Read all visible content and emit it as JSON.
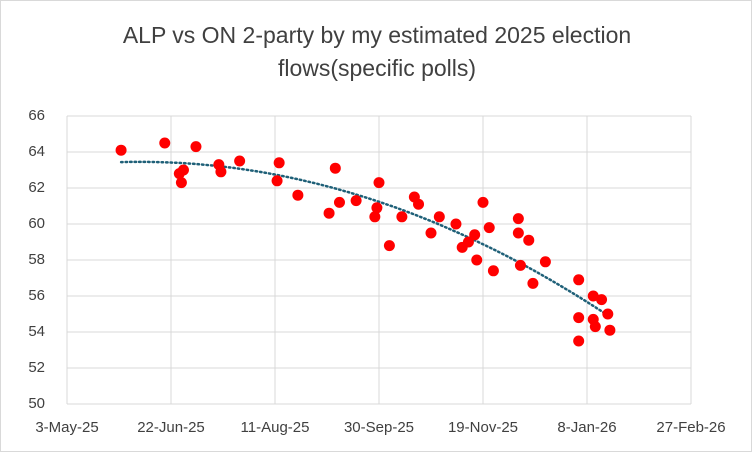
{
  "chart_data": {
    "type": "scatter",
    "title": "ALP vs ON 2-party by my estimated 2025 election flows(specific polls)",
    "color": "#ff0000",
    "grid": true,
    "trendline": "polynomial",
    "trendline_color": "#1f6078",
    "xlim": [
      45780,
      46080
    ],
    "xticks": [
      {
        "value": 45780,
        "label": "3-May-25"
      },
      {
        "value": 45830,
        "label": "22-Jun-25"
      },
      {
        "value": 45880,
        "label": "11-Aug-25"
      },
      {
        "value": 45930,
        "label": "30-Sep-25"
      },
      {
        "value": 45980,
        "label": "19-Nov-25"
      },
      {
        "value": 46030,
        "label": "8-Jan-26"
      },
      {
        "value": 46080,
        "label": "27-Feb-26"
      }
    ],
    "ylim": [
      50,
      66
    ],
    "yticks": [
      50,
      52,
      54,
      56,
      58,
      60,
      62,
      64,
      66
    ],
    "x": [
      45806,
      45827,
      45842,
      45834,
      45836,
      45835,
      45853,
      45854,
      45863,
      45882,
      45881,
      45891,
      45909,
      45911,
      45906,
      45919,
      45930,
      45929,
      45928,
      45935,
      45941,
      45947,
      45949,
      45955,
      45959,
      45967,
      45970,
      45973,
      45976,
      45977,
      45980,
      45983,
      45985,
      45997,
      45997,
      45998,
      46002,
      46004,
      46010,
      46026,
      46026,
      46026,
      46033,
      46037,
      46033,
      46034,
      46040,
      46041
    ],
    "values": [
      64.1,
      64.5,
      64.3,
      62.8,
      63.0,
      62.3,
      63.3,
      62.9,
      63.5,
      63.4,
      62.4,
      61.6,
      63.1,
      61.2,
      60.6,
      61.3,
      62.3,
      60.9,
      60.4,
      58.8,
      60.4,
      61.5,
      61.1,
      59.5,
      60.4,
      60.0,
      58.7,
      59.0,
      59.4,
      58.0,
      61.2,
      59.8,
      57.4,
      60.3,
      59.5,
      57.7,
      59.1,
      56.7,
      57.9,
      56.9,
      54.8,
      53.5,
      56.0,
      55.8,
      54.7,
      54.3,
      55.0,
      54.1
    ]
  }
}
